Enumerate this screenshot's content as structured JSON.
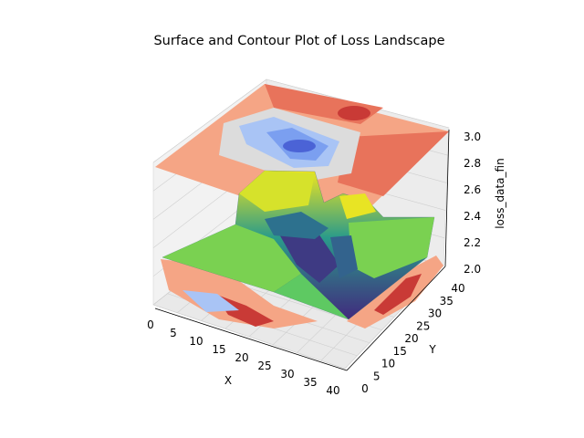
{
  "chart_data": {
    "type": "surface3d",
    "title": "Surface and Contour Plot of Loss Landscape",
    "xlabel": "X",
    "ylabel": "Y",
    "zlabel": "loss_data_fin",
    "xlim": [
      0,
      40
    ],
    "ylim": [
      0,
      40
    ],
    "zlim": [
      2.0,
      3.0
    ],
    "x_ticks": [
      "0",
      "5",
      "10",
      "15",
      "20",
      "25",
      "30",
      "35",
      "40"
    ],
    "y_ticks": [
      "0",
      "5",
      "10",
      "15",
      "20",
      "25",
      "30",
      "35",
      "40"
    ],
    "z_ticks": [
      "2.0",
      "2.2",
      "2.4",
      "2.6",
      "2.8",
      "3.0"
    ],
    "surface_colormap": "viridis",
    "contour_colormap": "coolwarm",
    "grid": true
  }
}
